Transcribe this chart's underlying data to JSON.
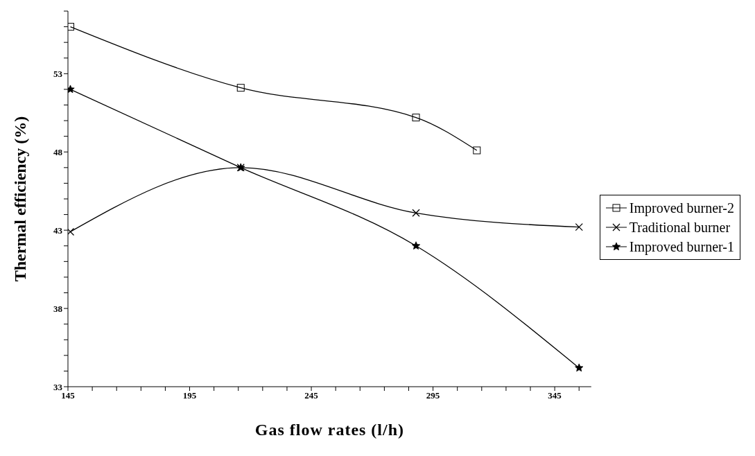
{
  "chart_data": {
    "type": "line",
    "xlabel": "Gas flow rates (l/h)",
    "ylabel": "Thermal efficiency (%)",
    "xlim": [
      145,
      360
    ],
    "xticks": [
      145,
      {
        "value": 155,
        "label": null
      },
      {
        "value": 165,
        "label": null
      },
      {
        "value": 175,
        "label": null
      },
      {
        "value": 185,
        "label": null
      },
      195,
      {
        "value": 205,
        "label": null
      },
      {
        "value": 215,
        "label": null
      },
      {
        "value": 225,
        "label": null
      },
      {
        "value": 235,
        "label": null
      },
      245,
      {
        "value": 255,
        "label": null
      },
      {
        "value": 265,
        "label": null
      },
      {
        "value": 275,
        "label": null
      },
      {
        "value": 285,
        "label": null
      },
      295,
      {
        "value": 305,
        "label": null
      },
      {
        "value": 315,
        "label": null
      },
      {
        "value": 325,
        "label": null
      },
      {
        "value": 335,
        "label": null
      },
      345,
      {
        "value": 355,
        "label": null
      }
    ],
    "ylim": [
      33,
      57
    ],
    "yticks": [
      33,
      {
        "value": 34,
        "label": null
      },
      {
        "value": 35,
        "label": null
      },
      {
        "value": 36,
        "label": null
      },
      {
        "value": 37,
        "label": null
      },
      38,
      {
        "value": 39,
        "label": null
      },
      {
        "value": 40,
        "label": null
      },
      {
        "value": 41,
        "label": null
      },
      {
        "value": 42,
        "label": null
      },
      43,
      {
        "value": 44,
        "label": null
      },
      {
        "value": 45,
        "label": null
      },
      {
        "value": 46,
        "label": null
      },
      {
        "value": 47,
        "label": null
      },
      48,
      {
        "value": 49,
        "label": null
      },
      {
        "value": 50,
        "label": null
      },
      {
        "value": 51,
        "label": null
      },
      {
        "value": 52,
        "label": null
      },
      53,
      {
        "value": 54,
        "label": null
      },
      {
        "value": 55,
        "label": null
      },
      {
        "value": 56,
        "label": null
      },
      {
        "value": 57,
        "label": null
      }
    ],
    "grid": false,
    "legend": "right",
    "line_style": "solid",
    "series": [
      {
        "name": "Improved burner-2",
        "color": "#000000",
        "marker": "square",
        "x": [
          146,
          216,
          288,
          313
        ],
        "values": [
          56.0,
          52.1,
          50.2,
          48.1
        ]
      },
      {
        "name": "Traditional burner",
        "color": "#000000",
        "marker": "cross",
        "x": [
          146,
          216,
          288,
          355
        ],
        "values": [
          42.9,
          47.0,
          44.1,
          43.2
        ]
      },
      {
        "name": "Improved burner-1",
        "color": "#000000",
        "marker": "star",
        "x": [
          146,
          216,
          288,
          355
        ],
        "values": [
          52.0,
          47.0,
          42.0,
          34.2
        ]
      }
    ]
  }
}
